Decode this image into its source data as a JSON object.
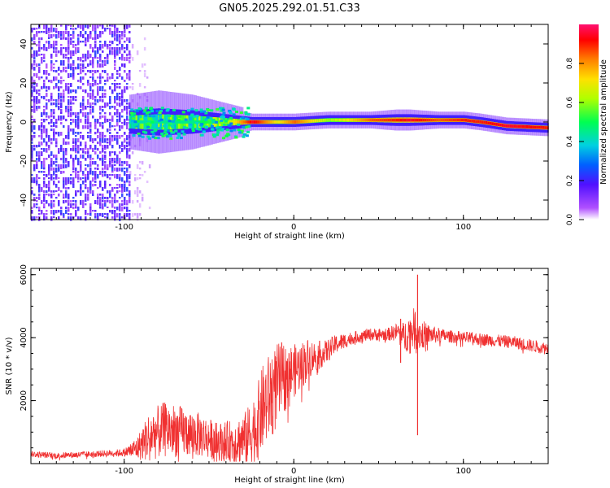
{
  "figure": {
    "title": "GN05.2025.292.01.51.C33"
  },
  "colors": {
    "background": "#ffffff",
    "snr_line": "#f03030",
    "spectrogram_bg": "#ffffff"
  },
  "chart_data": [
    {
      "type": "heatmap",
      "name_visible": false,
      "xlabel": "Height of straight line (km)",
      "ylabel": "Frequency (Hz)",
      "xlim": [
        -155,
        150
      ],
      "ylim": [
        -50,
        50
      ],
      "x_ticks": [
        -100,
        0,
        100
      ],
      "y_ticks": [
        -40,
        -20,
        0,
        20,
        40
      ],
      "colorbar": {
        "label": "Normalized spectral amplitude",
        "range": [
          0.0,
          1.0
        ],
        "ticks": [
          "0.0",
          "0.2",
          "0.4",
          "0.6",
          "0.8"
        ],
        "colormap": [
          "#ffffff",
          "#a000ff",
          "#4010ff",
          "#0070ff",
          "#00e0e0",
          "#00ff60",
          "#c0ff00",
          "#ffe000",
          "#ff8000",
          "#ff0000",
          "#ff1070"
        ]
      },
      "regions": [
        {
          "description": "broadband noise",
          "x_range": [
            -155,
            -97
          ],
          "freq_range": [
            -50,
            50
          ],
          "amplitude": 0.15
        },
        {
          "description": "sparse noise",
          "x_range": [
            -97,
            -85
          ],
          "freq_range": [
            -50,
            50
          ],
          "amplitude": 0.05
        }
      ],
      "signal_track": [
        {
          "x": -97,
          "freq": 0,
          "width_hz": 10,
          "amplitude": 0.4
        },
        {
          "x": -80,
          "freq": 0,
          "width_hz": 12,
          "amplitude": 0.45
        },
        {
          "x": -60,
          "freq": 0,
          "width_hz": 10,
          "amplitude": 0.45
        },
        {
          "x": -40,
          "freq": 0,
          "width_hz": 6,
          "amplitude": 0.6
        },
        {
          "x": -25,
          "freq": 0,
          "width_hz": 3,
          "amplitude": 0.95
        },
        {
          "x": -10,
          "freq": 0,
          "width_hz": 3,
          "amplitude": 0.7
        },
        {
          "x": 0,
          "freq": 0,
          "width_hz": 3,
          "amplitude": 0.85
        },
        {
          "x": 20,
          "freq": 1,
          "width_hz": 3,
          "amplitude": 0.6
        },
        {
          "x": 45,
          "freq": 1,
          "width_hz": 3,
          "amplitude": 0.85
        },
        {
          "x": 60,
          "freq": 1,
          "width_hz": 4,
          "amplitude": 0.9
        },
        {
          "x": 68,
          "freq": 1,
          "width_hz": 4,
          "amplitude": 0.95
        },
        {
          "x": 85,
          "freq": 1,
          "width_hz": 3,
          "amplitude": 0.85
        },
        {
          "x": 100,
          "freq": 1,
          "width_hz": 3,
          "amplitude": 0.9
        },
        {
          "x": 110,
          "freq": 0,
          "width_hz": 3,
          "amplitude": 0.9
        },
        {
          "x": 125,
          "freq": -2,
          "width_hz": 3,
          "amplitude": 0.95
        },
        {
          "x": 150,
          "freq": -3,
          "width_hz": 3,
          "amplitude": 0.9
        }
      ]
    },
    {
      "type": "line",
      "xlabel": "Height of straight line (km)",
      "ylabel": "SNR (10 * v/v)",
      "xlim": [
        -155,
        150
      ],
      "ylim": [
        0,
        6200
      ],
      "x_ticks": [
        -100,
        0,
        100
      ],
      "y_ticks": [
        2000,
        4000,
        6000
      ],
      "series": [
        {
          "x": [
            -155,
            -140,
            -120,
            -100,
            -92,
            -85,
            -75,
            -65,
            -55,
            -45,
            -35,
            -28,
            -22,
            -18,
            -12,
            -8,
            -2,
            2,
            8,
            12,
            18,
            25,
            35,
            45,
            55,
            62,
            65,
            68,
            72,
            75,
            80,
            90,
            100,
            110,
            120,
            130,
            140,
            150
          ],
          "y": [
            300,
            250,
            300,
            350,
            500,
            900,
            1100,
            1000,
            900,
            700,
            700,
            800,
            1200,
            1800,
            2300,
            2600,
            2900,
            3000,
            3300,
            3400,
            3500,
            3800,
            4000,
            4100,
            4100,
            4200,
            4000,
            4200,
            4300,
            4100,
            4100,
            4050,
            4000,
            3950,
            3900,
            3850,
            3750,
            3650
          ],
          "noise": [
            100,
            100,
            100,
            120,
            400,
            800,
            900,
            800,
            700,
            600,
            700,
            900,
            1200,
            1400,
            1400,
            1300,
            900,
            800,
            700,
            500,
            400,
            300,
            200,
            200,
            200,
            300,
            500,
            600,
            700,
            500,
            300,
            200,
            200,
            200,
            200,
            200,
            200,
            200
          ]
        }
      ],
      "annotations": [
        {
          "x": 63,
          "y_min": 3200,
          "y_max": 4600
        },
        {
          "x": 73,
          "y_min": 900,
          "y_max": 6000
        }
      ]
    }
  ]
}
